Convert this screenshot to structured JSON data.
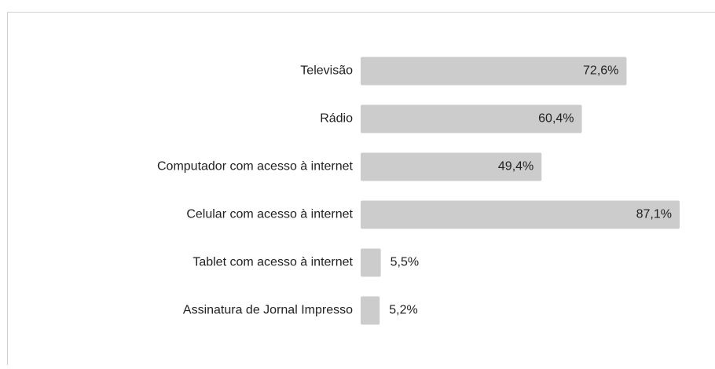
{
  "chart_data": {
    "type": "bar",
    "orientation": "horizontal",
    "categories": [
      "Televisão",
      "Rádio",
      "Computador com acesso à internet",
      "Celular com acesso à internet",
      "Tablet com acesso à internet",
      "Assinatura de Jornal Impresso"
    ],
    "values": [
      72.6,
      60.4,
      49.4,
      87.1,
      5.5,
      5.2
    ],
    "value_labels": [
      "72,6%",
      "60,4%",
      "49,4%",
      "87,1%",
      "5,5%",
      "5,2%"
    ],
    "color": "#cccccc"
  }
}
